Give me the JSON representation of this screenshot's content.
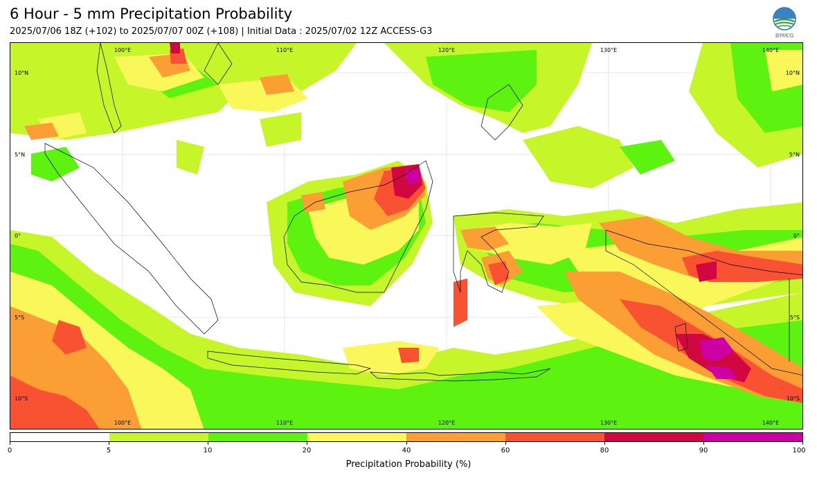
{
  "header": {
    "title": "6 Hour - 5 mm Precipitation Probability",
    "subtitle": "2025/07/06 18Z (+102) to 2025/07/07 00Z (+108) | Initial Data : 2025/07/02 12Z ACCESS-G3"
  },
  "logo": {
    "icon": "bmkg-logo-icon",
    "text": "BMKG"
  },
  "map": {
    "lon_labels": [
      "100°E",
      "110°E",
      "120°E",
      "130°E",
      "140°E"
    ],
    "lat_labels": [
      "10°N",
      "5°N",
      "0°",
      "5°S",
      "10°S"
    ]
  },
  "colorbar": {
    "label": "Precipitation Probability (%)",
    "ticks": [
      "0",
      "5",
      "10",
      "20",
      "40",
      "60",
      "80",
      "90",
      "100"
    ],
    "colors": [
      "#ffffff",
      "#c6f52a",
      "#5df20f",
      "#f9f75a",
      "#fb9e33",
      "#f95232",
      "#d0083f",
      "#cc00a3"
    ]
  }
}
